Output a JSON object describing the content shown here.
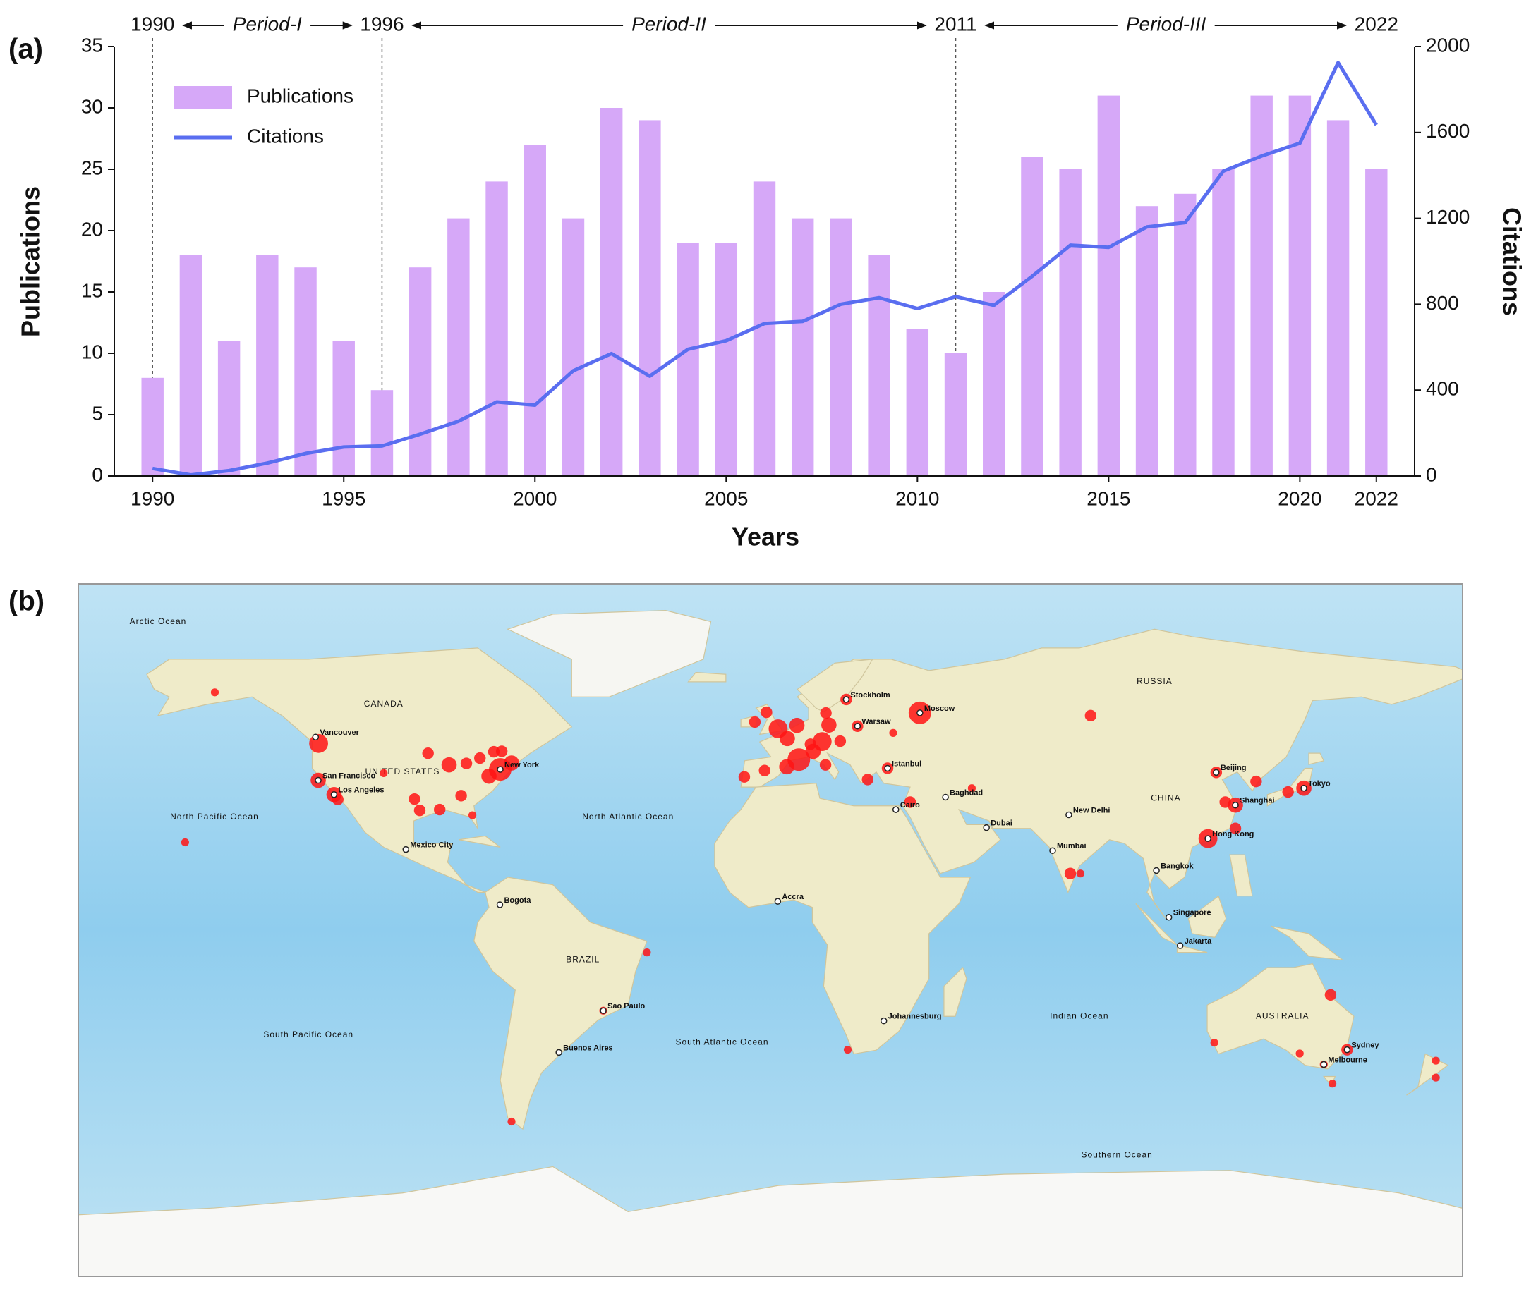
{
  "chart_data": {
    "type": "bar",
    "panel_label": "(a)",
    "x": [
      1990,
      1991,
      1992,
      1993,
      1994,
      1995,
      1996,
      1997,
      1998,
      1999,
      2000,
      2001,
      2002,
      2003,
      2004,
      2005,
      2006,
      2007,
      2008,
      2009,
      2010,
      2011,
      2012,
      2013,
      2014,
      2015,
      2016,
      2017,
      2018,
      2019,
      2020,
      2021,
      2022
    ],
    "series": [
      {
        "name": "Publications",
        "type": "bar",
        "color": "#d6a8f8",
        "values": [
          8,
          18,
          11,
          18,
          17,
          11,
          7,
          17,
          21,
          24,
          27,
          21,
          30,
          29,
          19,
          19,
          24,
          21,
          21,
          18,
          12,
          10,
          15,
          26,
          25,
          31,
          22,
          23,
          25,
          31,
          31,
          29,
          25
        ]
      },
      {
        "name": "Citations",
        "type": "line",
        "axis": "y2",
        "color": "#5a6ef0",
        "values": [
          35,
          5,
          25,
          60,
          105,
          135,
          140,
          195,
          255,
          345,
          330,
          490,
          570,
          465,
          590,
          630,
          710,
          720,
          800,
          830,
          780,
          835,
          795,
          930,
          1075,
          1065,
          1160,
          1180,
          1420,
          1490,
          1550,
          1925,
          1635
        ]
      }
    ],
    "xlim": [
      1989,
      2023
    ],
    "xticks": [
      1990,
      1995,
      2000,
      2005,
      2010,
      2015,
      2020,
      2022
    ],
    "ylim": [
      0,
      35
    ],
    "yticks": [
      0,
      5,
      10,
      15,
      20,
      25,
      30,
      35
    ],
    "y2lim": [
      0,
      2000
    ],
    "y2ticks": [
      0,
      400,
      800,
      1200,
      1600,
      2000
    ],
    "xlabel": "Years",
    "ylabel": "Publications",
    "y2label": "Citations",
    "legend": "upper left",
    "grid": false,
    "periods": [
      {
        "name": "Period-I",
        "start": 1990,
        "end": 1996
      },
      {
        "name": "Period-II",
        "start": 1996,
        "end": 2011
      },
      {
        "name": "Period-III",
        "start": 2011,
        "end": 2022
      }
    ]
  },
  "map": {
    "panel_label": "(b)",
    "hotspots": [
      {
        "lon": -122.3,
        "lat": 47.6,
        "size": 4
      },
      {
        "lon": -122.4,
        "lat": 37.8,
        "size": 3
      },
      {
        "lon": -118.2,
        "lat": 34,
        "size": 3
      },
      {
        "lon": -117.2,
        "lat": 32.7,
        "size": 2
      },
      {
        "lon": -105,
        "lat": 39.7,
        "size": 1
      },
      {
        "lon": -96.8,
        "lat": 32.8,
        "size": 2
      },
      {
        "lon": -95.4,
        "lat": 29.8,
        "size": 2
      },
      {
        "lon": -90.1,
        "lat": 30,
        "size": 2
      },
      {
        "lon": -84.4,
        "lat": 33.7,
        "size": 2
      },
      {
        "lon": -87.6,
        "lat": 41.9,
        "size": 3
      },
      {
        "lon": -83,
        "lat": 42.3,
        "size": 2
      },
      {
        "lon": -79.4,
        "lat": 43.7,
        "size": 2
      },
      {
        "lon": -71,
        "lat": 42.4,
        "size": 3
      },
      {
        "lon": -74,
        "lat": 40.7,
        "size": 5
      },
      {
        "lon": -77,
        "lat": 38.9,
        "size": 3
      },
      {
        "lon": -75.7,
        "lat": 45.4,
        "size": 2
      },
      {
        "lon": -73.6,
        "lat": 45.5,
        "size": 2
      },
      {
        "lon": -93.2,
        "lat": 45,
        "size": 2
      },
      {
        "lon": -81.4,
        "lat": 28.5,
        "size": 1
      },
      {
        "lon": -157.8,
        "lat": 21.3,
        "size": 1
      },
      {
        "lon": -149.9,
        "lat": 61.2,
        "size": 1
      },
      {
        "lon": -0.1,
        "lat": 51.5,
        "size": 4
      },
      {
        "lon": 2.35,
        "lat": 48.9,
        "size": 3
      },
      {
        "lon": -3.7,
        "lat": 40.4,
        "size": 2
      },
      {
        "lon": 2.2,
        "lat": 41.4,
        "size": 3
      },
      {
        "lon": 5.4,
        "lat": 43.3,
        "size": 5
      },
      {
        "lon": 9.2,
        "lat": 45.5,
        "size": 3
      },
      {
        "lon": 12.5,
        "lat": 41.9,
        "size": 2
      },
      {
        "lon": 13.4,
        "lat": 52.5,
        "size": 3
      },
      {
        "lon": 4.9,
        "lat": 52.4,
        "size": 3
      },
      {
        "lon": 12.6,
        "lat": 55.7,
        "size": 2
      },
      {
        "lon": 18,
        "lat": 59.3,
        "size": 2
      },
      {
        "lon": 21,
        "lat": 52.2,
        "size": 2
      },
      {
        "lon": 16.4,
        "lat": 48.2,
        "size": 2
      },
      {
        "lon": 11.6,
        "lat": 48.1,
        "size": 4
      },
      {
        "lon": 8.5,
        "lat": 47.4,
        "size": 2
      },
      {
        "lon": 23.7,
        "lat": 38,
        "size": 2
      },
      {
        "lon": 29,
        "lat": 41,
        "size": 2
      },
      {
        "lon": -6.3,
        "lat": 53.3,
        "size": 2
      },
      {
        "lon": -9.1,
        "lat": 38.7,
        "size": 2
      },
      {
        "lon": -3.2,
        "lat": 55.9,
        "size": 2
      },
      {
        "lon": 37.6,
        "lat": 55.75,
        "size": 5
      },
      {
        "lon": 30.5,
        "lat": 50.4,
        "size": 1
      },
      {
        "lon": 83,
        "lat": 55,
        "size": 2
      },
      {
        "lon": 116.4,
        "lat": 39.9,
        "size": 2
      },
      {
        "lon": 121.5,
        "lat": 31.2,
        "size": 3
      },
      {
        "lon": 118.8,
        "lat": 32,
        "size": 2
      },
      {
        "lon": 114.2,
        "lat": 22.3,
        "size": 4
      },
      {
        "lon": 139.7,
        "lat": 35.7,
        "size": 3
      },
      {
        "lon": 135.5,
        "lat": 34.7,
        "size": 2
      },
      {
        "lon": 127,
        "lat": 37.5,
        "size": 2
      },
      {
        "lon": 121.5,
        "lat": 25,
        "size": 2
      },
      {
        "lon": 77.6,
        "lat": 13,
        "size": 2
      },
      {
        "lon": 80.3,
        "lat": 13,
        "size": 1
      },
      {
        "lon": 51.4,
        "lat": 35.7,
        "size": 1
      },
      {
        "lon": 35,
        "lat": 32,
        "size": 2
      },
      {
        "lon": -46.6,
        "lat": -23.5,
        "size": 1
      },
      {
        "lon": -35,
        "lat": -8,
        "size": 1
      },
      {
        "lon": -71,
        "lat": -53,
        "size": 1
      },
      {
        "lon": 18.4,
        "lat": -33.9,
        "size": 1
      },
      {
        "lon": 115.9,
        "lat": -32,
        "size": 1
      },
      {
        "lon": 146.8,
        "lat": -19.3,
        "size": 2
      },
      {
        "lon": 151.2,
        "lat": -33.9,
        "size": 2
      },
      {
        "lon": 145,
        "lat": -37.8,
        "size": 1
      },
      {
        "lon": 138.6,
        "lat": -34.9,
        "size": 1
      },
      {
        "lon": 147.3,
        "lat": -42.9,
        "size": 1
      },
      {
        "lon": 174.8,
        "lat": -36.8,
        "size": 1
      },
      {
        "lon": 174.8,
        "lat": -41.3,
        "size": 1
      }
    ],
    "cities": [
      {
        "name": "Vancouver",
        "lon": -123.1,
        "lat": 49.3
      },
      {
        "name": "San Francisco",
        "lon": -122.4,
        "lat": 37.8
      },
      {
        "name": "Los Angeles",
        "lon": -118.2,
        "lat": 34
      },
      {
        "name": "New York",
        "lon": -74,
        "lat": 40.7
      },
      {
        "name": "Mexico City",
        "lon": -99.1,
        "lat": 19.4
      },
      {
        "name": "Bogota",
        "lon": -74.1,
        "lat": 4.7
      },
      {
        "name": "Sao Paulo",
        "lon": -46.6,
        "lat": -23.5
      },
      {
        "name": "Buenos Aires",
        "lon": -58.4,
        "lat": -34.6
      },
      {
        "name": "Accra",
        "lon": -0.2,
        "lat": 5.6
      },
      {
        "name": "Johannesburg",
        "lon": 28,
        "lat": -26.2
      },
      {
        "name": "Cairo",
        "lon": 31.2,
        "lat": 30
      },
      {
        "name": "Baghdad",
        "lon": 44.4,
        "lat": 33.3
      },
      {
        "name": "Istanbul",
        "lon": 29,
        "lat": 41
      },
      {
        "name": "Warsaw",
        "lon": 21,
        "lat": 52.2
      },
      {
        "name": "Stockholm",
        "lon": 18,
        "lat": 59.3
      },
      {
        "name": "Moscow",
        "lon": 37.6,
        "lat": 55.75
      },
      {
        "name": "Dubai",
        "lon": 55.3,
        "lat": 25.2
      },
      {
        "name": "New Delhi",
        "lon": 77.2,
        "lat": 28.6
      },
      {
        "name": "Mumbai",
        "lon": 72.9,
        "lat": 19.1
      },
      {
        "name": "Bangkok",
        "lon": 100.5,
        "lat": 13.8
      },
      {
        "name": "Singapore",
        "lon": 103.8,
        "lat": 1.35
      },
      {
        "name": "Jakarta",
        "lon": 106.8,
        "lat": -6.2
      },
      {
        "name": "Beijing",
        "lon": 116.4,
        "lat": 39.9
      },
      {
        "name": "Shanghai",
        "lon": 121.5,
        "lat": 31.2
      },
      {
        "name": "Hong Kong",
        "lon": 114.2,
        "lat": 22.3
      },
      {
        "name": "Tokyo",
        "lon": 139.7,
        "lat": 35.7
      },
      {
        "name": "Sydney",
        "lon": 151.2,
        "lat": -33.9
      },
      {
        "name": "Melbourne",
        "lon": 145,
        "lat": -37.8
      }
    ],
    "regions": [
      {
        "name": "CANADA",
        "lon": -105,
        "lat": 58
      },
      {
        "name": "UNITED STATES",
        "lon": -100,
        "lat": 40
      },
      {
        "name": "BRAZIL",
        "lon": -52,
        "lat": -10
      },
      {
        "name": "RUSSIA",
        "lon": 100,
        "lat": 64
      },
      {
        "name": "CHINA",
        "lon": 103,
        "lat": 33
      },
      {
        "name": "AUSTRALIA",
        "lon": 134,
        "lat": -25
      },
      {
        "name": "Arctic Ocean",
        "lon": -165,
        "lat": 80
      },
      {
        "name": "North Pacific Ocean",
        "lon": -150,
        "lat": 28
      },
      {
        "name": "North Atlantic Ocean",
        "lon": -40,
        "lat": 28
      },
      {
        "name": "South Pacific Ocean",
        "lon": -125,
        "lat": -30
      },
      {
        "name": "South Atlantic Ocean",
        "lon": -15,
        "lat": -32
      },
      {
        "name": "Indian Ocean",
        "lon": 80,
        "lat": -25
      },
      {
        "name": "Southern Ocean",
        "lon": 90,
        "lat": -62
      }
    ]
  }
}
